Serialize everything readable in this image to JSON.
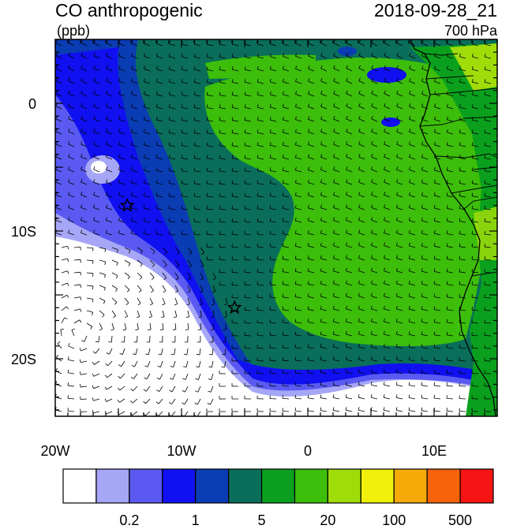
{
  "header": {
    "title": "CO anthropogenic",
    "units": "(ppb)",
    "datetime": "2018-09-28_21",
    "level": "700 hPa"
  },
  "axes": {
    "lat_labels": [
      {
        "value": 0,
        "label": "0"
      },
      {
        "value": -10,
        "label": "10S"
      },
      {
        "value": -20,
        "label": "20S"
      }
    ],
    "lon_labels": [
      {
        "value": -20,
        "label": "20W"
      },
      {
        "value": -10,
        "label": "10W"
      },
      {
        "value": 0,
        "label": "0"
      },
      {
        "value": 10,
        "label": "10E"
      }
    ],
    "lon_range": [
      -20,
      15
    ],
    "lat_range": [
      -24.5,
      5
    ]
  },
  "colorbar": {
    "colors": [
      "#ffffff",
      "#a6a6f7",
      "#5a5af2",
      "#1010f0",
      "#0a3cb4",
      "#0a6e5a",
      "#0aa01e",
      "#3cbe0a",
      "#a0dc0a",
      "#f0f00a",
      "#f5aa0a",
      "#f5640a",
      "#f51414"
    ],
    "labels": [
      {
        "index": 1,
        "label": "0.2"
      },
      {
        "index": 3,
        "label": "1"
      },
      {
        "index": 5,
        "label": "5"
      },
      {
        "index": 7,
        "label": "20"
      },
      {
        "index": 9,
        "label": "100"
      },
      {
        "index": 11,
        "label": "500"
      }
    ]
  },
  "markers": [
    {
      "name": "star-marker-1",
      "lon": -14.3,
      "lat": -8.0
    },
    {
      "name": "star-marker-2",
      "lon": -5.8,
      "lat": -16.0
    }
  ]
}
